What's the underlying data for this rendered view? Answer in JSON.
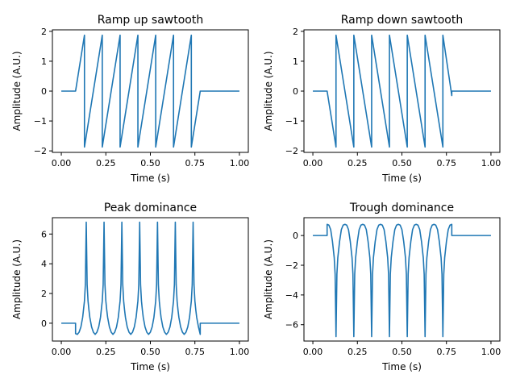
{
  "figure": {
    "background": "#ffffff",
    "line_color": "#1f77b4"
  },
  "chart_data": [
    {
      "type": "line",
      "title": "Ramp up sawtooth",
      "xlabel": "Time (s)",
      "ylabel": "Amplitude (A.U.)",
      "xlim": [
        -0.05,
        1.05
      ],
      "ylim": [
        -2.05,
        2.05
      ],
      "xticks": [
        0.0,
        0.25,
        0.5,
        0.75,
        1.0
      ],
      "xtick_labels": [
        "0.00",
        "0.25",
        "0.50",
        "0.75",
        "1.00"
      ],
      "yticks": [
        -2,
        -1,
        0,
        1,
        2
      ],
      "ytick_labels": [
        "−2",
        "−1",
        "0",
        "1",
        "2"
      ],
      "grid": false,
      "series": [
        {
          "x": [
            0.0,
            0.08,
            0.13,
            0.13,
            0.23,
            0.23,
            0.33,
            0.33,
            0.43,
            0.43,
            0.53,
            0.53,
            0.63,
            0.63,
            0.73,
            0.73,
            0.78,
            1.0
          ],
          "y": [
            0.0,
            0.0,
            1.87,
            -1.87,
            1.87,
            -1.87,
            1.87,
            -1.87,
            1.87,
            -1.87,
            1.87,
            -1.87,
            1.87,
            -1.87,
            1.87,
            -1.87,
            0.0,
            0.0
          ]
        }
      ]
    },
    {
      "type": "line",
      "title": "Ramp down sawtooth",
      "xlabel": "Time (s)",
      "ylabel": "Amplitude (A.U.)",
      "xlim": [
        -0.05,
        1.05
      ],
      "ylim": [
        -2.05,
        2.05
      ],
      "xticks": [
        0.0,
        0.25,
        0.5,
        0.75,
        1.0
      ],
      "xtick_labels": [
        "0.00",
        "0.25",
        "0.50",
        "0.75",
        "1.00"
      ],
      "yticks": [
        -2,
        -1,
        0,
        1,
        2
      ],
      "ytick_labels": [
        "−2",
        "−1",
        "0",
        "1",
        "2"
      ],
      "grid": false,
      "series": [
        {
          "x": [
            0.0,
            0.08,
            0.13,
            0.13,
            0.23,
            0.23,
            0.33,
            0.33,
            0.43,
            0.43,
            0.53,
            0.53,
            0.63,
            0.63,
            0.73,
            0.73,
            0.78,
            0.78,
            1.0
          ],
          "y": [
            0.0,
            0.0,
            -1.87,
            1.87,
            -1.87,
            1.87,
            -1.87,
            1.87,
            -1.87,
            1.87,
            -1.87,
            1.87,
            -1.87,
            1.87,
            -1.87,
            1.87,
            -0.15,
            0.0,
            0.0
          ]
        }
      ]
    },
    {
      "type": "line",
      "title": "Peak dominance",
      "xlabel": "Time (s)",
      "ylabel": "Amplitude (A.U.)",
      "xlim": [
        -0.05,
        1.05
      ],
      "ylim": [
        -1.2,
        7.1
      ],
      "xticks": [
        0.0,
        0.25,
        0.5,
        0.75,
        1.0
      ],
      "xtick_labels": [
        "0.00",
        "0.25",
        "0.50",
        "0.75",
        "1.00"
      ],
      "yticks": [
        0,
        2,
        4,
        6
      ],
      "ytick_labels": [
        "0",
        "2",
        "4",
        "6"
      ],
      "grid": false,
      "series": [
        {
          "x": [
            0.0,
            0.08,
            0.08,
            0.09,
            0.1,
            0.11,
            0.12,
            0.13,
            0.135,
            0.14,
            0.145,
            0.15,
            0.155,
            0.16,
            0.17,
            0.18,
            0.19,
            0.2,
            0.21,
            0.22,
            0.23,
            0.235,
            0.24,
            0.245,
            0.25,
            0.255,
            0.26,
            0.27,
            0.28,
            0.29,
            0.3,
            0.31,
            0.32,
            0.33,
            0.335,
            0.34,
            0.345,
            0.35,
            0.355,
            0.36,
            0.37,
            0.38,
            0.39,
            0.4,
            0.41,
            0.42,
            0.43,
            0.435,
            0.44,
            0.445,
            0.45,
            0.455,
            0.46,
            0.47,
            0.48,
            0.49,
            0.5,
            0.51,
            0.52,
            0.53,
            0.535,
            0.54,
            0.545,
            0.55,
            0.555,
            0.56,
            0.57,
            0.58,
            0.59,
            0.6,
            0.61,
            0.62,
            0.63,
            0.635,
            0.64,
            0.645,
            0.65,
            0.655,
            0.66,
            0.67,
            0.68,
            0.69,
            0.7,
            0.71,
            0.72,
            0.73,
            0.735,
            0.74,
            0.745,
            0.75,
            0.755,
            0.76,
            0.77,
            0.78,
            0.78,
            1.0
          ],
          "y": [
            0.0,
            0.0,
            -0.7,
            -0.75,
            -0.6,
            -0.25,
            0.4,
            1.5,
            2.6,
            6.8,
            2.6,
            1.5,
            0.9,
            0.4,
            -0.25,
            -0.6,
            -0.75,
            -0.6,
            -0.25,
            0.4,
            1.5,
            2.6,
            6.8,
            2.6,
            1.5,
            0.9,
            0.4,
            -0.25,
            -0.6,
            -0.75,
            -0.6,
            -0.25,
            0.4,
            1.5,
            2.6,
            6.8,
            2.6,
            1.5,
            0.9,
            0.4,
            -0.25,
            -0.6,
            -0.75,
            -0.6,
            -0.25,
            0.4,
            1.5,
            2.6,
            6.8,
            2.6,
            1.5,
            0.9,
            0.4,
            -0.25,
            -0.6,
            -0.75,
            -0.6,
            -0.25,
            0.4,
            1.5,
            2.6,
            6.8,
            2.6,
            1.5,
            0.9,
            0.4,
            -0.25,
            -0.6,
            -0.75,
            -0.6,
            -0.25,
            0.4,
            1.5,
            2.6,
            6.8,
            2.6,
            1.5,
            0.9,
            0.4,
            -0.25,
            -0.6,
            -0.75,
            -0.6,
            -0.25,
            0.4,
            1.5,
            2.6,
            6.8,
            2.6,
            1.5,
            0.9,
            0.4,
            -0.25,
            -0.75,
            0.0,
            0.0
          ]
        }
      ]
    },
    {
      "type": "line",
      "title": "Trough dominance",
      "xlabel": "Time (s)",
      "ylabel": "Amplitude (A.U.)",
      "xlim": [
        -0.05,
        1.05
      ],
      "ylim": [
        -7.1,
        1.2
      ],
      "xticks": [
        0.0,
        0.25,
        0.5,
        0.75,
        1.0
      ],
      "xtick_labels": [
        "0.00",
        "0.25",
        "0.50",
        "0.75",
        "1.00"
      ],
      "yticks": [
        -6,
        -4,
        -2,
        0
      ],
      "ytick_labels": [
        "−6",
        "−4",
        "−2",
        "0"
      ],
      "grid": false,
      "series": [
        {
          "x": [
            0.0,
            0.08,
            0.08,
            0.09,
            0.1,
            0.11,
            0.12,
            0.125,
            0.13,
            0.135,
            0.14,
            0.15,
            0.16,
            0.17,
            0.18,
            0.19,
            0.2,
            0.21,
            0.22,
            0.225,
            0.23,
            0.235,
            0.24,
            0.25,
            0.26,
            0.27,
            0.28,
            0.29,
            0.3,
            0.31,
            0.32,
            0.325,
            0.33,
            0.335,
            0.34,
            0.35,
            0.36,
            0.37,
            0.38,
            0.39,
            0.4,
            0.41,
            0.42,
            0.425,
            0.43,
            0.435,
            0.44,
            0.45,
            0.46,
            0.47,
            0.48,
            0.49,
            0.5,
            0.51,
            0.52,
            0.525,
            0.53,
            0.535,
            0.54,
            0.55,
            0.56,
            0.57,
            0.58,
            0.59,
            0.6,
            0.61,
            0.62,
            0.625,
            0.63,
            0.635,
            0.64,
            0.65,
            0.66,
            0.67,
            0.68,
            0.69,
            0.7,
            0.71,
            0.72,
            0.725,
            0.73,
            0.735,
            0.74,
            0.75,
            0.76,
            0.77,
            0.78,
            0.78,
            1.0
          ],
          "y": [
            0.0,
            0.0,
            0.75,
            0.7,
            0.4,
            -0.4,
            -1.5,
            -2.6,
            -6.8,
            -2.6,
            -1.5,
            -0.4,
            0.4,
            0.7,
            0.75,
            0.7,
            0.4,
            -0.4,
            -1.5,
            -2.6,
            -6.8,
            -2.6,
            -1.5,
            -0.4,
            0.4,
            0.7,
            0.75,
            0.7,
            0.4,
            -0.4,
            -1.5,
            -2.6,
            -6.8,
            -2.6,
            -1.5,
            -0.4,
            0.4,
            0.7,
            0.75,
            0.7,
            0.4,
            -0.4,
            -1.5,
            -2.6,
            -6.8,
            -2.6,
            -1.5,
            -0.4,
            0.4,
            0.7,
            0.75,
            0.7,
            0.4,
            -0.4,
            -1.5,
            -2.6,
            -6.8,
            -2.6,
            -1.5,
            -0.4,
            0.4,
            0.7,
            0.75,
            0.7,
            0.4,
            -0.4,
            -1.5,
            -2.6,
            -6.8,
            -2.6,
            -1.5,
            -0.4,
            0.4,
            0.7,
            0.75,
            0.7,
            0.4,
            -0.4,
            -1.5,
            -2.6,
            -6.8,
            -2.6,
            -1.5,
            -0.4,
            0.4,
            0.7,
            0.75,
            0.0,
            0.0
          ]
        }
      ]
    }
  ]
}
